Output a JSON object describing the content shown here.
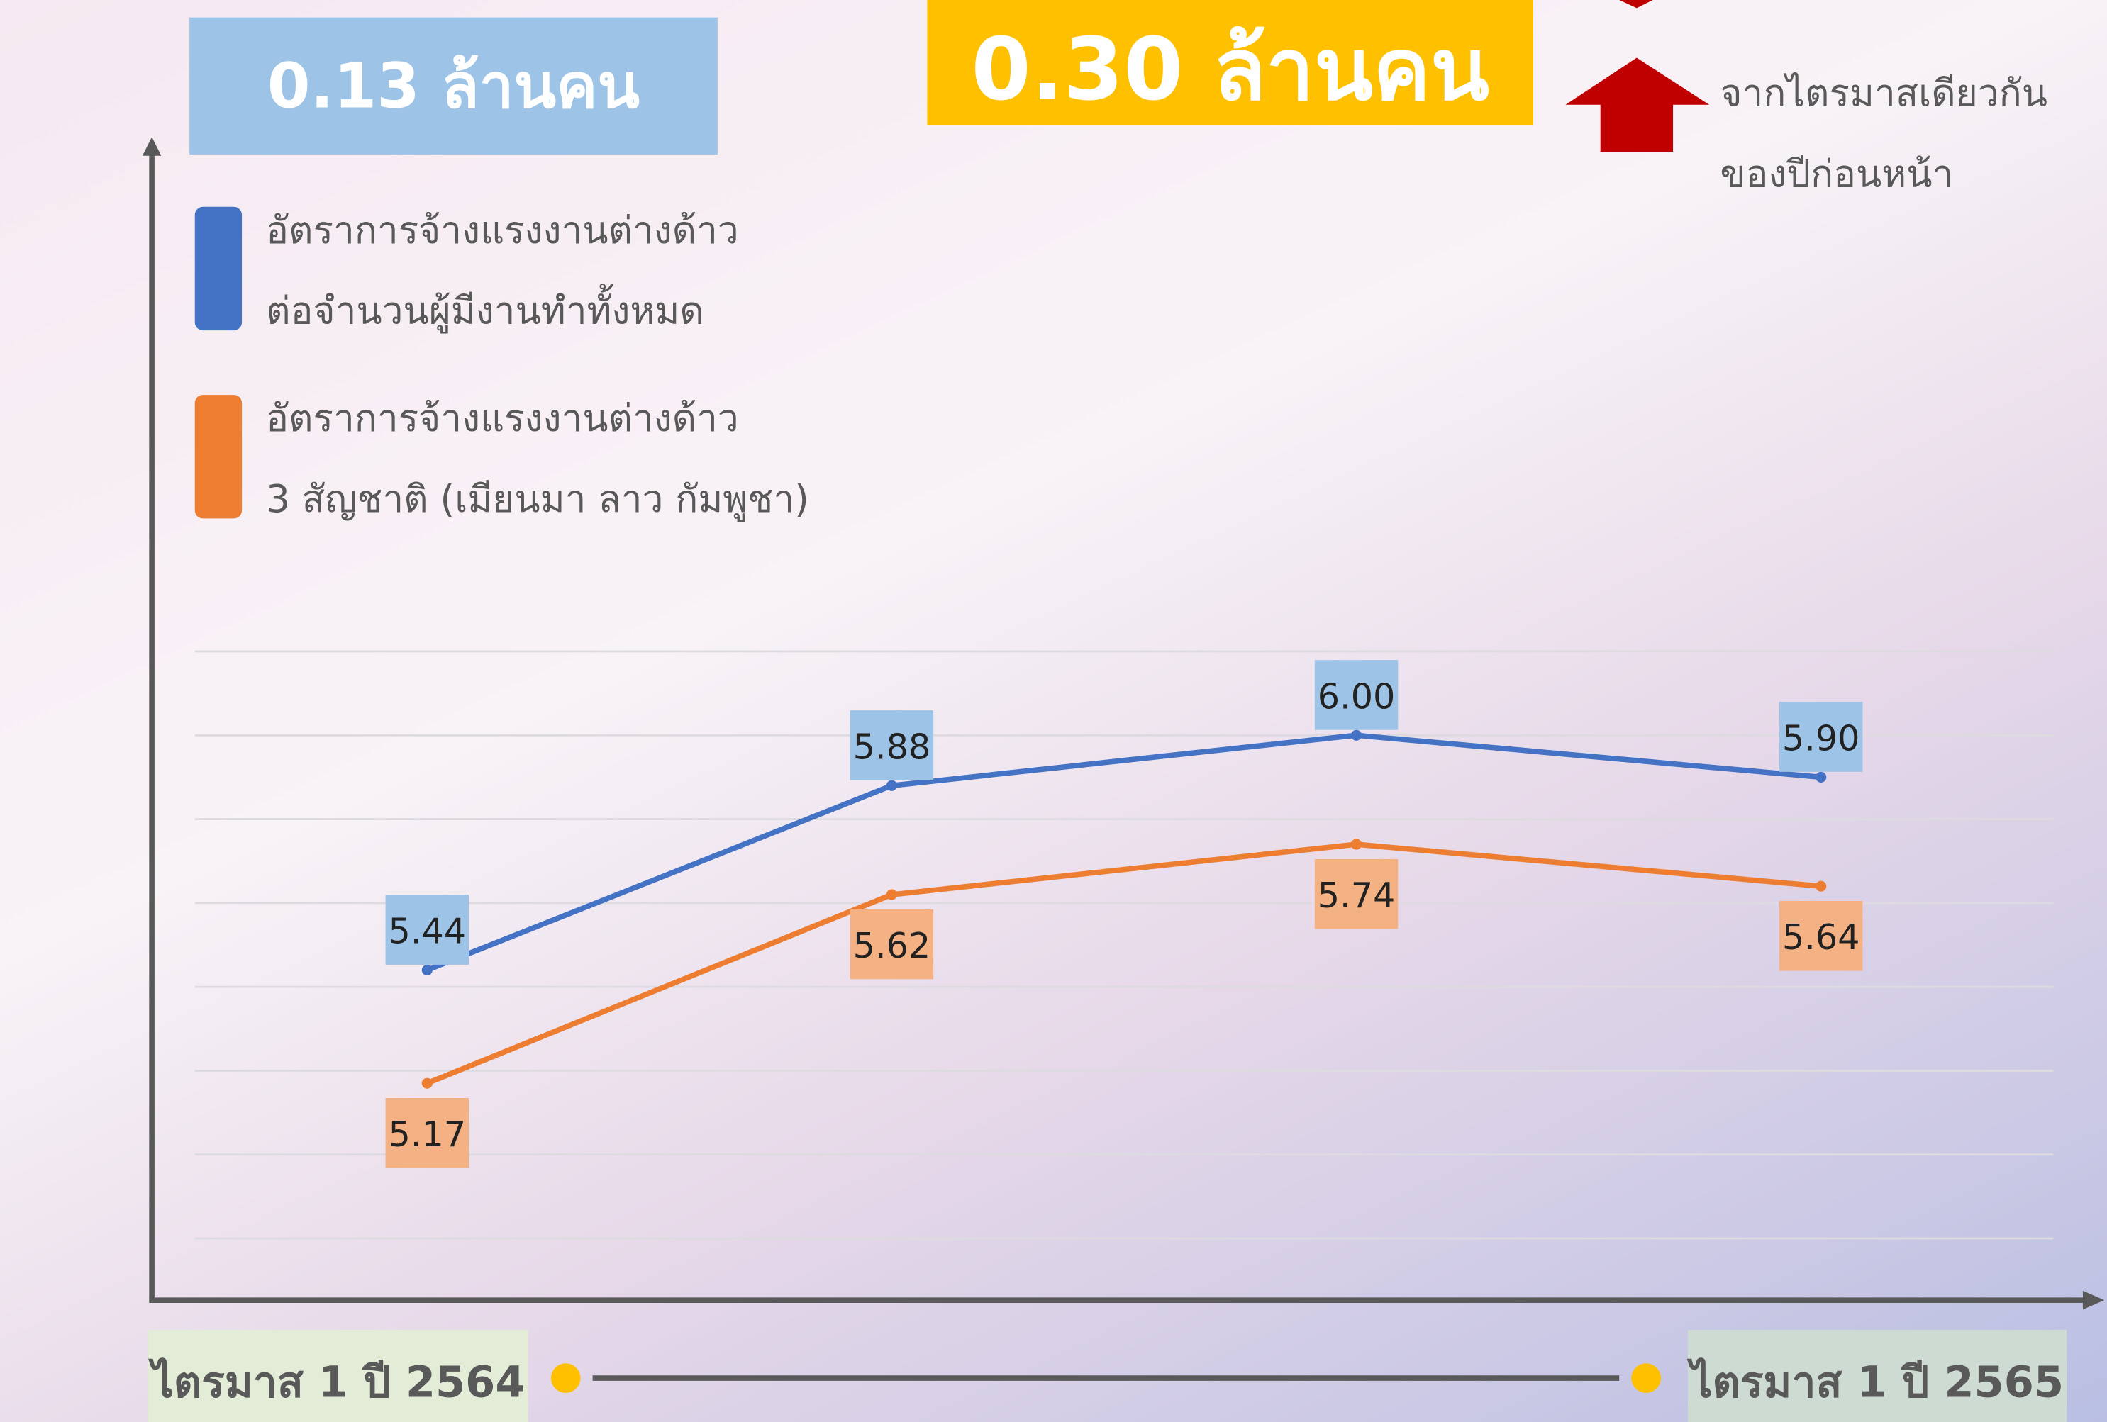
{
  "chart_data": {
    "type": "line",
    "headline_left": "0.13 ล้านคน",
    "headline_center": "0.30 ล้านคน",
    "annotation_lines": [
      "จากไตรมาสเดียวกัน",
      "ของปีก่อนหน้า"
    ],
    "timeline_start": "ไตรมาส 1 ปี 2564",
    "timeline_end": "ไตรมาส 1 ปี 2565",
    "categories": [
      null,
      null,
      null,
      null
    ],
    "series": [
      {
        "name": "อัตราการจ้างแรงงานต่างด้าว\nต่อจำนวนผู้มีงานทำทั้งหมด",
        "color": "#4472c4",
        "label_color": "#9dc3e6",
        "values": [
          5.44,
          5.88,
          6.0,
          5.9
        ],
        "value_labels": [
          "5.44",
          "5.88",
          "6.00",
          "5.90"
        ]
      },
      {
        "name": "อัตราการจ้างแรงงานต่างด้าว\n3 สัญชาติ (เมียนมา ลาว กัมพูชา)",
        "color": "#ed7d31",
        "label_color": "#f4b183",
        "values": [
          5.17,
          5.62,
          5.74,
          5.64
        ],
        "value_labels": [
          "5.17",
          "5.62",
          "5.74",
          "5.64"
        ]
      }
    ],
    "ylim": [
      4.8,
      6.2
    ],
    "yticks": [
      4.8,
      5.0,
      5.2,
      5.4,
      5.6,
      5.8,
      6.0,
      6.2
    ],
    "grid": true
  }
}
